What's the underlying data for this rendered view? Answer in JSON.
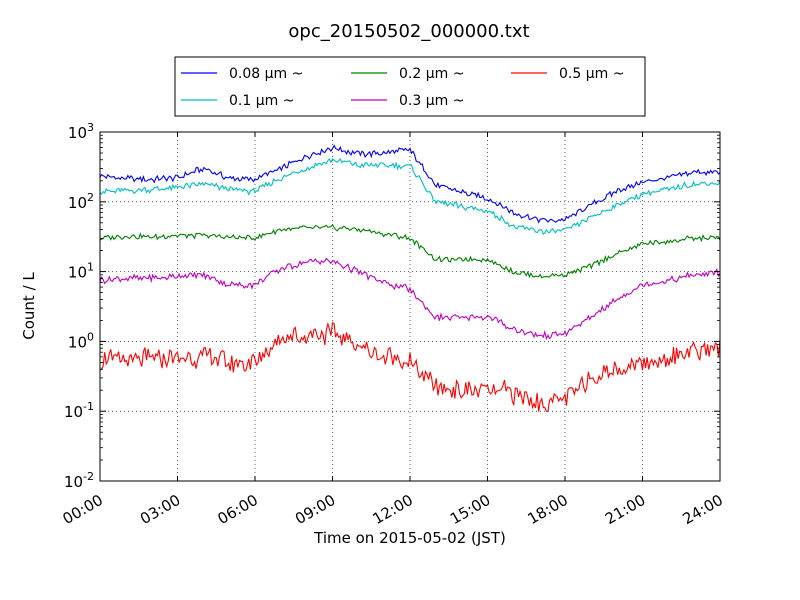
{
  "chart_data": {
    "type": "line",
    "title": "opc_20150502_000000.txt",
    "xlabel": "Time on 2015-05-02 (JST)",
    "ylabel": "Count / L",
    "yscale": "log",
    "ylim": [
      0.01,
      1000
    ],
    "xlim": [
      "00:00",
      "24:00"
    ],
    "grid": true,
    "legend_position": "top-center",
    "legend_columns": 3,
    "x_ticks": [
      "00:00",
      "03:00",
      "06:00",
      "09:00",
      "12:00",
      "15:00",
      "18:00",
      "21:00",
      "24:00"
    ],
    "y_ticks": [
      {
        "value": 0.01,
        "base": "10",
        "exp": "-2"
      },
      {
        "value": 0.1,
        "base": "10",
        "exp": "-1"
      },
      {
        "value": 1,
        "base": "10",
        "exp": "0"
      },
      {
        "value": 10,
        "base": "10",
        "exp": "1"
      },
      {
        "value": 100,
        "base": "10",
        "exp": "2"
      },
      {
        "value": 1000,
        "base": "10",
        "exp": "3"
      }
    ],
    "x_hours": [
      0,
      1,
      2,
      3,
      4,
      5,
      6,
      7,
      8,
      9,
      10,
      11,
      12,
      13,
      14,
      15,
      16,
      17,
      18,
      19,
      20,
      21,
      22,
      23,
      24
    ],
    "series": [
      {
        "name": "0.08 μm ~",
        "color": "#0000ff",
        "values": [
          230,
          215,
          210,
          220,
          300,
          220,
          210,
          300,
          450,
          600,
          480,
          500,
          550,
          170,
          140,
          110,
          70,
          55,
          55,
          90,
          140,
          190,
          220,
          270,
          260
        ]
      },
      {
        "name": "0.1 μm ~",
        "color": "#00bfbf",
        "values": [
          140,
          145,
          150,
          160,
          180,
          150,
          140,
          220,
          300,
          400,
          340,
          330,
          330,
          100,
          85,
          75,
          45,
          38,
          38,
          60,
          90,
          130,
          150,
          180,
          190
        ]
      },
      {
        "name": "0.2 μm ~",
        "color": "#008000",
        "values": [
          30,
          32,
          31,
          33,
          33,
          31,
          30,
          40,
          42,
          43,
          40,
          35,
          30,
          15,
          15,
          15,
          10,
          8.5,
          9,
          12,
          18,
          25,
          27,
          30,
          31
        ]
      },
      {
        "name": "0.3 μm ~",
        "color": "#bf00bf",
        "values": [
          7.5,
          8,
          8,
          8.5,
          9,
          6.5,
          6.5,
          11,
          14,
          14,
          10,
          7,
          5.5,
          2.2,
          2.2,
          2.3,
          1.5,
          1.2,
          1.3,
          2.2,
          4,
          6.5,
          7.5,
          9,
          9.5
        ]
      },
      {
        "name": "0.5 μm ~",
        "color": "#ff0000",
        "values": [
          0.55,
          0.55,
          0.55,
          0.55,
          0.6,
          0.5,
          0.5,
          1.1,
          1.3,
          1.3,
          0.9,
          0.6,
          0.5,
          0.22,
          0.2,
          0.2,
          0.18,
          0.13,
          0.15,
          0.3,
          0.4,
          0.5,
          0.6,
          0.75,
          0.8
        ]
      }
    ]
  }
}
